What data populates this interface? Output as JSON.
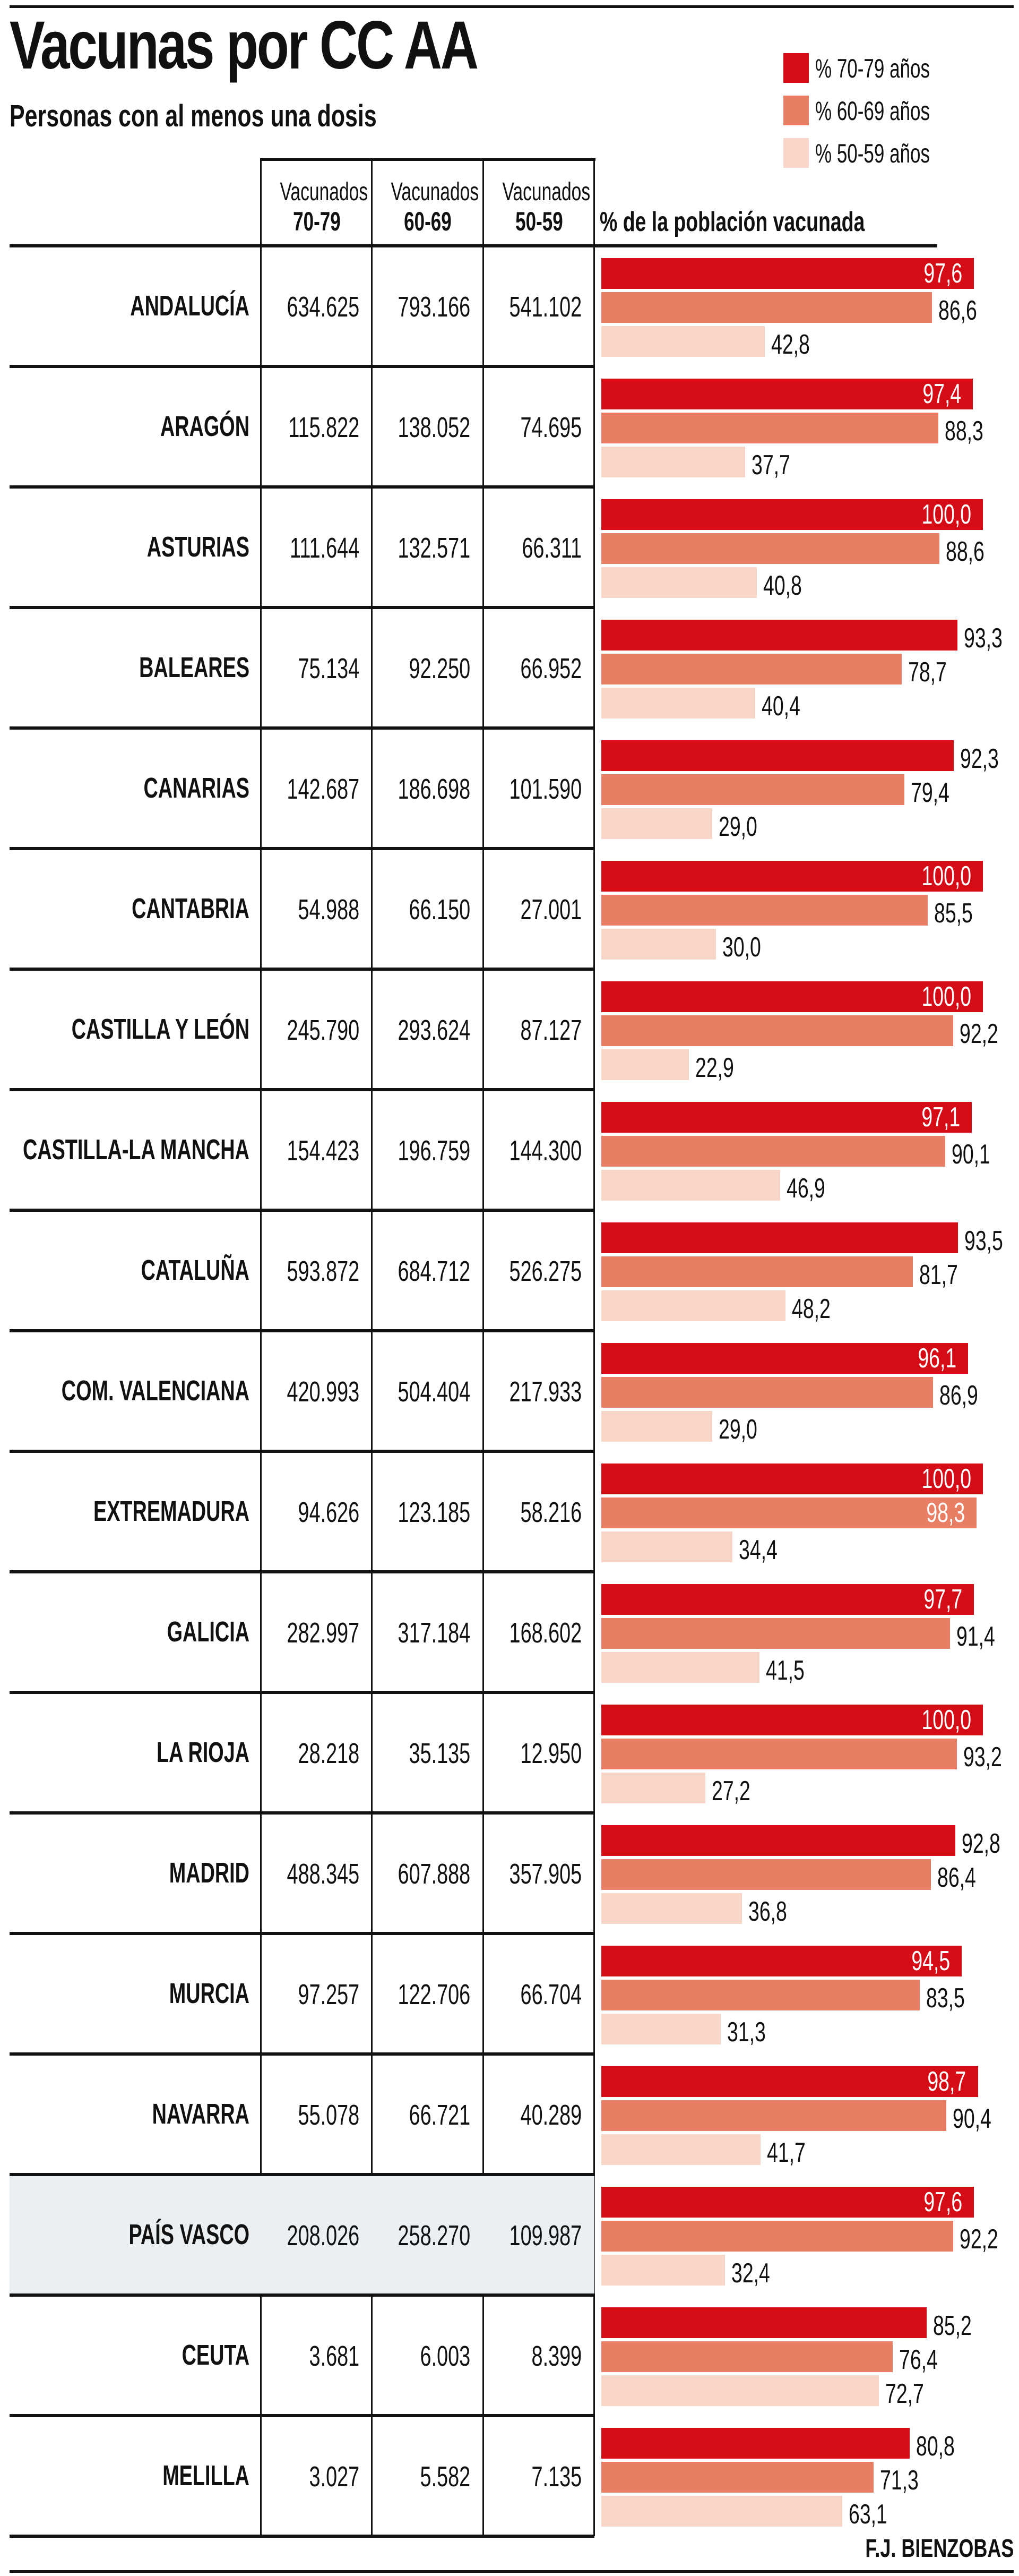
{
  "chart_data": {
    "type": "bar",
    "title": "Vacunas por CC AA",
    "subtitle": "Personas con al menos una dosis",
    "legend": [
      {
        "name": "% 70-79 años",
        "color": "#d50b16"
      },
      {
        "name": "% 60-69 años",
        "color": "#e87e63"
      },
      {
        "name": "% 50-59 años",
        "color": "#f7d6c8"
      }
    ],
    "legend_placement": "top-right",
    "table_headers": [
      {
        "line1": "Vacunados",
        "line2": "70-79"
      },
      {
        "line1": "Vacunados",
        "line2": "60-69"
      },
      {
        "line1": "Vacunados",
        "line2": "50-59"
      }
    ],
    "bar_header": "% de la población vacunada",
    "xlim": [
      0,
      100
    ],
    "highlight_row": "PAÍS VASCO",
    "rows": [
      {
        "name": "ANDALUCÍA",
        "vac": [
          "634.625",
          "793.166",
          "541.102"
        ],
        "pct": [
          97.6,
          86.6,
          42.8
        ],
        "pct_labels": [
          "97,6",
          "86,6",
          "42,8"
        ]
      },
      {
        "name": "ARAGÓN",
        "vac": [
          "115.822",
          "138.052",
          "74.695"
        ],
        "pct": [
          97.4,
          88.3,
          37.7
        ],
        "pct_labels": [
          "97,4",
          "88,3",
          "37,7"
        ]
      },
      {
        "name": "ASTURIAS",
        "vac": [
          "111.644",
          "132.571",
          "66.311"
        ],
        "pct": [
          100.0,
          88.6,
          40.8
        ],
        "pct_labels": [
          "100,0",
          "88,6",
          "40,8"
        ]
      },
      {
        "name": "BALEARES",
        "vac": [
          "75.134",
          "92.250",
          "66.952"
        ],
        "pct": [
          93.3,
          78.7,
          40.4
        ],
        "pct_labels": [
          "93,3",
          "78,7",
          "40,4"
        ]
      },
      {
        "name": "CANARIAS",
        "vac": [
          "142.687",
          "186.698",
          "101.590"
        ],
        "pct": [
          92.3,
          79.4,
          29.0
        ],
        "pct_labels": [
          "92,3",
          "79,4",
          "29,0"
        ]
      },
      {
        "name": "CANTABRIA",
        "vac": [
          "54.988",
          "66.150",
          "27.001"
        ],
        "pct": [
          100.0,
          85.5,
          30.0
        ],
        "pct_labels": [
          "100,0",
          "85,5",
          "30,0"
        ]
      },
      {
        "name": "CASTILLA Y LEÓN",
        "vac": [
          "245.790",
          "293.624",
          "87.127"
        ],
        "pct": [
          100.0,
          92.2,
          22.9
        ],
        "pct_labels": [
          "100,0",
          "92,2",
          "22,9"
        ]
      },
      {
        "name": "CASTILLA-LA MANCHA",
        "vac": [
          "154.423",
          "196.759",
          "144.300"
        ],
        "pct": [
          97.1,
          90.1,
          46.9
        ],
        "pct_labels": [
          "97,1",
          "90,1",
          "46,9"
        ]
      },
      {
        "name": "CATALUÑA",
        "vac": [
          "593.872",
          "684.712",
          "526.275"
        ],
        "pct": [
          93.5,
          81.7,
          48.2
        ],
        "pct_labels": [
          "93,5",
          "81,7",
          "48,2"
        ]
      },
      {
        "name": "COM. VALENCIANA",
        "vac": [
          "420.993",
          "504.404",
          "217.933"
        ],
        "pct": [
          96.1,
          86.9,
          29.0
        ],
        "pct_labels": [
          "96,1",
          "86,9",
          "29,0"
        ]
      },
      {
        "name": "EXTREMADURA",
        "vac": [
          "94.626",
          "123.185",
          "58.216"
        ],
        "pct": [
          100.0,
          98.3,
          34.4
        ],
        "pct_labels": [
          "100,0",
          "98,3",
          "34,4"
        ]
      },
      {
        "name": "GALICIA",
        "vac": [
          "282.997",
          "317.184",
          "168.602"
        ],
        "pct": [
          97.7,
          91.4,
          41.5
        ],
        "pct_labels": [
          "97,7",
          "91,4",
          "41,5"
        ]
      },
      {
        "name": "LA RIOJA",
        "vac": [
          "28.218",
          "35.135",
          "12.950"
        ],
        "pct": [
          100.0,
          93.2,
          27.2
        ],
        "pct_labels": [
          "100,0",
          "93,2",
          "27,2"
        ]
      },
      {
        "name": "MADRID",
        "vac": [
          "488.345",
          "607.888",
          "357.905"
        ],
        "pct": [
          92.8,
          86.4,
          36.8
        ],
        "pct_labels": [
          "92,8",
          "86,4",
          "36,8"
        ]
      },
      {
        "name": "MURCIA",
        "vac": [
          "97.257",
          "122.706",
          "66.704"
        ],
        "pct": [
          94.5,
          83.5,
          31.3
        ],
        "pct_labels": [
          "94,5",
          "83,5",
          "31,3"
        ]
      },
      {
        "name": "NAVARRA",
        "vac": [
          "55.078",
          "66.721",
          "40.289"
        ],
        "pct": [
          98.7,
          90.4,
          41.7
        ],
        "pct_labels": [
          "98,7",
          "90,4",
          "41,7"
        ]
      },
      {
        "name": "PAÍS VASCO",
        "vac": [
          "208.026",
          "258.270",
          "109.987"
        ],
        "pct": [
          97.6,
          92.2,
          32.4
        ],
        "pct_labels": [
          "97,6",
          "92,2",
          "32,4"
        ]
      },
      {
        "name": "CEUTA",
        "vac": [
          "3.681",
          "6.003",
          "8.399"
        ],
        "pct": [
          85.2,
          76.4,
          72.7
        ],
        "pct_labels": [
          "85,2",
          "76,4",
          "72,7"
        ]
      },
      {
        "name": "MELILLA",
        "vac": [
          "3.027",
          "5.582",
          "7.135"
        ],
        "pct": [
          80.8,
          71.3,
          63.1
        ],
        "pct_labels": [
          "80,8",
          "71,3",
          "63,1"
        ]
      }
    ],
    "credit": "F.J. BIENZOBAS"
  }
}
